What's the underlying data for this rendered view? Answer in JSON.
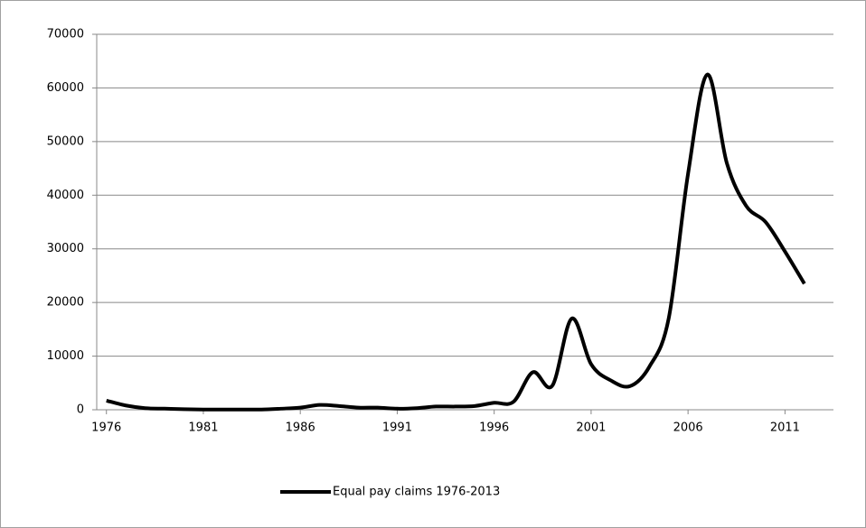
{
  "chart_data": {
    "type": "line",
    "x": [
      1976,
      1977,
      1978,
      1979,
      1980,
      1981,
      1982,
      1983,
      1984,
      1985,
      1986,
      1987,
      1988,
      1989,
      1990,
      1991,
      1992,
      1993,
      1994,
      1995,
      1996,
      1997,
      1998,
      1999,
      2000,
      2001,
      2002,
      2003,
      2004,
      2005,
      2006,
      2007,
      2008,
      2009,
      2010,
      2011,
      2012,
      2013
    ],
    "series": [
      {
        "name": "Equal pay claims 1976-2013",
        "color": "#000000",
        "values": [
          1700,
          800,
          300,
          200,
          100,
          50,
          50,
          50,
          50,
          200,
          400,
          900,
          700,
          400,
          400,
          200,
          300,
          600,
          600,
          700,
          1300,
          1500,
          7000,
          4500,
          17000,
          8500,
          5500,
          4400,
          8000,
          17000,
          44000,
          62500,
          46000,
          38000,
          35000,
          29500,
          23500,
          null
        ]
      }
    ],
    "xlim": [
      1975.5,
      2013.5
    ],
    "xticks": [
      1976,
      1981,
      1986,
      1991,
      1996,
      2001,
      2006,
      2011
    ],
    "ylim": [
      0,
      70000
    ],
    "yticks": [
      0,
      10000,
      20000,
      30000,
      40000,
      50000,
      60000,
      70000
    ],
    "grid": true,
    "legend": "bottom"
  }
}
